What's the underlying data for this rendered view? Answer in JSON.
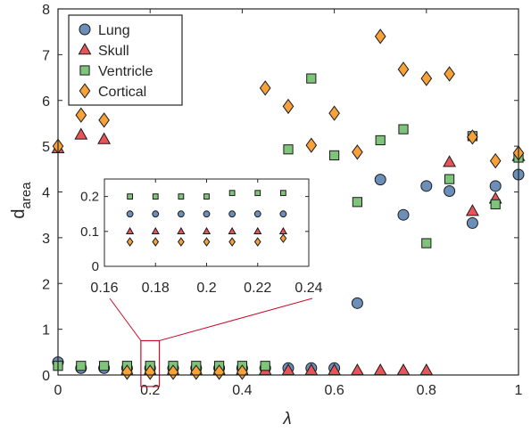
{
  "chart_data": {
    "type": "scatter",
    "xlabel": "λ",
    "ylabel_main": "d",
    "ylabel_sub": "area",
    "xlim": [
      0,
      1
    ],
    "ylim": [
      0,
      8
    ],
    "xticks": [
      0,
      0.2,
      0.4,
      0.6,
      0.8,
      1
    ],
    "xtick_labels": [
      "0",
      "0.2",
      "0.4",
      "0.6",
      "0.8",
      "1"
    ],
    "yticks": [
      0,
      1,
      2,
      3,
      4,
      5,
      6,
      7,
      8
    ],
    "ytick_labels": [
      "0",
      "1",
      "2",
      "3",
      "4",
      "5",
      "6",
      "7",
      "8"
    ],
    "grid": false,
    "legend_position": "top-left",
    "colors": {
      "Lung": "#6b8fb8",
      "Skull": "#e8545a",
      "Ventricle": "#7ec47a",
      "Cortical": "#f7a13a",
      "zoom": "#c8102e"
    },
    "series": [
      {
        "name": "Lung",
        "marker": "circle",
        "x": [
          0,
          0.05,
          0.1,
          0.15,
          0.2,
          0.25,
          0.3,
          0.35,
          0.4,
          0.45,
          0.5,
          0.55,
          0.6,
          0.65,
          0.7,
          0.75,
          0.8,
          0.85,
          0.9,
          0.95,
          1
        ],
        "y": [
          0.28,
          0.15,
          0.15,
          0.15,
          0.15,
          0.15,
          0.15,
          0.15,
          0.15,
          0.15,
          0.15,
          0.15,
          0.15,
          1.57,
          4.27,
          3.5,
          4.13,
          4.02,
          3.32,
          4.13,
          4.38
        ]
      },
      {
        "name": "Skull",
        "marker": "triangle",
        "x": [
          0,
          0.05,
          0.1,
          0.15,
          0.2,
          0.25,
          0.3,
          0.35,
          0.4,
          0.45,
          0.5,
          0.55,
          0.6,
          0.65,
          0.7,
          0.75,
          0.8,
          0.85,
          0.9,
          0.95,
          1
        ],
        "y": [
          4.95,
          5.25,
          5.15,
          0.1,
          0.1,
          0.1,
          0.1,
          0.1,
          0.1,
          0.1,
          0.1,
          0.1,
          0.1,
          0.1,
          0.1,
          0.1,
          0.1,
          4.65,
          3.58,
          3.85,
          4.78
        ]
      },
      {
        "name": "Ventricle",
        "marker": "square",
        "x": [
          0,
          0.05,
          0.1,
          0.15,
          0.2,
          0.25,
          0.3,
          0.35,
          0.4,
          0.45,
          0.5,
          0.55,
          0.6,
          0.65,
          0.7,
          0.75,
          0.8,
          0.85,
          0.9,
          0.95,
          1
        ],
        "y": [
          0.2,
          0.2,
          0.2,
          0.2,
          0.2,
          0.2,
          0.2,
          0.2,
          0.2,
          0.2,
          4.93,
          6.48,
          4.8,
          3.78,
          5.13,
          5.37,
          2.88,
          4.28,
          5.22,
          3.73,
          4.75
        ]
      },
      {
        "name": "Cortical",
        "marker": "diamond",
        "x": [
          0,
          0.05,
          0.1,
          0.15,
          0.2,
          0.25,
          0.3,
          0.35,
          0.4,
          0.45,
          0.5,
          0.55,
          0.6,
          0.65,
          0.7,
          0.75,
          0.8,
          0.85,
          0.9,
          0.95,
          1
        ],
        "y": [
          5.0,
          5.68,
          5.57,
          0.06,
          0.06,
          0.06,
          0.06,
          0.06,
          0.06,
          6.27,
          5.87,
          5.02,
          5.72,
          4.87,
          7.4,
          6.68,
          6.48,
          6.58,
          5.2,
          4.68,
          4.85
        ]
      }
    ],
    "inset": {
      "xlim": [
        0.16,
        0.24
      ],
      "ylim": [
        0,
        0.25
      ],
      "xticks": [
        0.16,
        0.18,
        0.2,
        0.22,
        0.24
      ],
      "xtick_labels": [
        "0.16",
        "0.18",
        "0.2",
        "0.22",
        "0.24"
      ],
      "yticks": [
        0,
        0.1,
        0.2
      ],
      "ytick_labels": [
        "0",
        "0.1",
        "0.2"
      ],
      "zoom_region": {
        "xlim": [
          0.18,
          0.22
        ],
        "ylim": [
          -0.25,
          0.75
        ]
      },
      "series": [
        {
          "name": "Lung",
          "x": [
            0.17,
            0.18,
            0.19,
            0.2,
            0.21,
            0.22,
            0.23
          ],
          "y": [
            0.15,
            0.15,
            0.15,
            0.15,
            0.15,
            0.15,
            0.15
          ]
        },
        {
          "name": "Skull",
          "x": [
            0.17,
            0.18,
            0.19,
            0.2,
            0.21,
            0.22,
            0.23
          ],
          "y": [
            0.1,
            0.1,
            0.1,
            0.1,
            0.1,
            0.1,
            0.1
          ]
        },
        {
          "name": "Ventricle",
          "x": [
            0.17,
            0.18,
            0.19,
            0.2,
            0.21,
            0.22,
            0.23
          ],
          "y": [
            0.2,
            0.2,
            0.2,
            0.2,
            0.21,
            0.21,
            0.21
          ]
        },
        {
          "name": "Cortical",
          "x": [
            0.17,
            0.18,
            0.19,
            0.2,
            0.21,
            0.22,
            0.23
          ],
          "y": [
            0.07,
            0.07,
            0.07,
            0.07,
            0.07,
            0.07,
            0.08
          ]
        }
      ]
    }
  }
}
